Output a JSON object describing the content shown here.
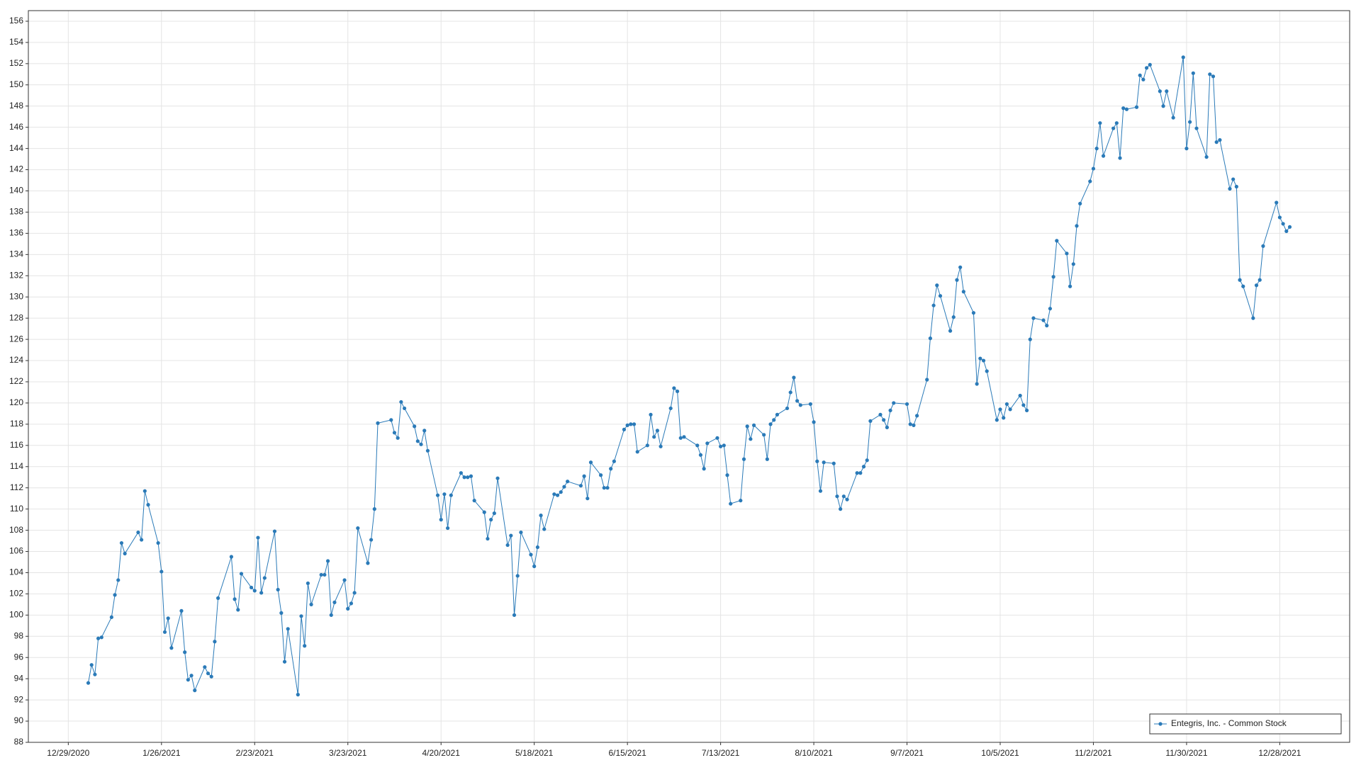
{
  "chart_data": {
    "type": "line",
    "x": [
      "1/4/2021",
      "1/5/2021",
      "1/6/2021",
      "1/7/2021",
      "1/8/2021",
      "1/11/2021",
      "1/12/2021",
      "1/13/2021",
      "1/14/2021",
      "1/15/2021",
      "1/19/2021",
      "1/20/2021",
      "1/21/2021",
      "1/22/2021",
      "1/25/2021",
      "1/26/2021",
      "1/27/2021",
      "1/28/2021",
      "1/29/2021",
      "2/1/2021",
      "2/2/2021",
      "2/3/2021",
      "2/4/2021",
      "2/5/2021",
      "2/8/2021",
      "2/9/2021",
      "2/10/2021",
      "2/11/2021",
      "2/12/2021",
      "2/16/2021",
      "2/17/2021",
      "2/18/2021",
      "2/19/2021",
      "2/22/2021",
      "2/23/2021",
      "2/24/2021",
      "2/25/2021",
      "2/26/2021",
      "3/1/2021",
      "3/2/2021",
      "3/3/2021",
      "3/4/2021",
      "3/5/2021",
      "3/8/2021",
      "3/9/2021",
      "3/10/2021",
      "3/11/2021",
      "3/12/2021",
      "3/15/2021",
      "3/16/2021",
      "3/17/2021",
      "3/18/2021",
      "3/19/2021",
      "3/22/2021",
      "3/23/2021",
      "3/24/2021",
      "3/25/2021",
      "3/26/2021",
      "3/29/2021",
      "3/30/2021",
      "3/31/2021",
      "4/1/2021",
      "4/5/2021",
      "4/6/2021",
      "4/7/2021",
      "4/8/2021",
      "4/9/2021",
      "4/12/2021",
      "4/13/2021",
      "4/14/2021",
      "4/15/2021",
      "4/16/2021",
      "4/19/2021",
      "4/20/2021",
      "4/21/2021",
      "4/22/2021",
      "4/23/2021",
      "4/26/2021",
      "4/27/2021",
      "4/28/2021",
      "4/29/2021",
      "4/30/2021",
      "5/3/2021",
      "5/4/2021",
      "5/5/2021",
      "5/6/2021",
      "5/7/2021",
      "5/10/2021",
      "5/11/2021",
      "5/12/2021",
      "5/13/2021",
      "5/14/2021",
      "5/17/2021",
      "5/18/2021",
      "5/19/2021",
      "5/20/2021",
      "5/21/2021",
      "5/24/2021",
      "5/25/2021",
      "5/26/2021",
      "5/27/2021",
      "5/28/2021",
      "6/1/2021",
      "6/2/2021",
      "6/3/2021",
      "6/4/2021",
      "6/7/2021",
      "6/8/2021",
      "6/9/2021",
      "6/10/2021",
      "6/11/2021",
      "6/14/2021",
      "6/15/2021",
      "6/16/2021",
      "6/17/2021",
      "6/18/2021",
      "6/21/2021",
      "6/22/2021",
      "6/23/2021",
      "6/24/2021",
      "6/25/2021",
      "6/28/2021",
      "6/29/2021",
      "6/30/2021",
      "7/1/2021",
      "7/2/2021",
      "7/6/2021",
      "7/7/2021",
      "7/8/2021",
      "7/9/2021",
      "7/12/2021",
      "7/13/2021",
      "7/14/2021",
      "7/15/2021",
      "7/16/2021",
      "7/19/2021",
      "7/20/2021",
      "7/21/2021",
      "7/22/2021",
      "7/23/2021",
      "7/26/2021",
      "7/27/2021",
      "7/28/2021",
      "7/29/2021",
      "7/30/2021",
      "8/2/2021",
      "8/3/2021",
      "8/4/2021",
      "8/5/2021",
      "8/6/2021",
      "8/9/2021",
      "8/10/2021",
      "8/11/2021",
      "8/12/2021",
      "8/13/2021",
      "8/16/2021",
      "8/17/2021",
      "8/18/2021",
      "8/19/2021",
      "8/20/2021",
      "8/23/2021",
      "8/24/2021",
      "8/25/2021",
      "8/26/2021",
      "8/27/2021",
      "8/30/2021",
      "8/31/2021",
      "9/1/2021",
      "9/2/2021",
      "9/3/2021",
      "9/7/2021",
      "9/8/2021",
      "9/9/2021",
      "9/10/2021",
      "9/13/2021",
      "9/14/2021",
      "9/15/2021",
      "9/16/2021",
      "9/17/2021",
      "9/20/2021",
      "9/21/2021",
      "9/22/2021",
      "9/23/2021",
      "9/24/2021",
      "9/27/2021",
      "9/28/2021",
      "9/29/2021",
      "9/30/2021",
      "10/1/2021",
      "10/4/2021",
      "10/5/2021",
      "10/6/2021",
      "10/7/2021",
      "10/8/2021",
      "10/11/2021",
      "10/12/2021",
      "10/13/2021",
      "10/14/2021",
      "10/15/2021",
      "10/18/2021",
      "10/19/2021",
      "10/20/2021",
      "10/21/2021",
      "10/22/2021",
      "10/25/2021",
      "10/26/2021",
      "10/27/2021",
      "10/28/2021",
      "10/29/2021",
      "11/1/2021",
      "11/2/2021",
      "11/3/2021",
      "11/4/2021",
      "11/5/2021",
      "11/8/2021",
      "11/9/2021",
      "11/10/2021",
      "11/11/2021",
      "11/12/2021",
      "11/15/2021",
      "11/16/2021",
      "11/17/2021",
      "11/18/2021",
      "11/19/2021",
      "11/22/2021",
      "11/23/2021",
      "11/24/2021",
      "11/26/2021",
      "11/29/2021",
      "11/30/2021",
      "12/1/2021",
      "12/2/2021",
      "12/3/2021",
      "12/6/2021",
      "12/7/2021",
      "12/8/2021",
      "12/9/2021",
      "12/10/2021",
      "12/13/2021",
      "12/14/2021",
      "12/15/2021",
      "12/16/2021",
      "12/17/2021",
      "12/20/2021",
      "12/21/2021",
      "12/22/2021",
      "12/23/2021",
      "12/27/2021",
      "12/28/2021",
      "12/29/2021",
      "12/30/2021",
      "12/31/2021"
    ],
    "series": [
      {
        "name": "Entegris, Inc. - Common Stock",
        "color": "#2a7ab8",
        "values": [
          93.6,
          95.3,
          94.4,
          97.8,
          97.9,
          99.8,
          101.9,
          103.3,
          106.8,
          105.8,
          107.8,
          107.1,
          111.7,
          110.4,
          106.8,
          104.1,
          98.4,
          99.7,
          96.9,
          100.4,
          96.5,
          93.9,
          94.3,
          92.9,
          95.1,
          94.5,
          94.2,
          97.5,
          101.6,
          105.5,
          101.5,
          100.5,
          103.9,
          102.6,
          102.3,
          107.3,
          102.1,
          103.5,
          107.9,
          102.4,
          100.2,
          95.6,
          98.7,
          92.5,
          99.9,
          97.1,
          103.0,
          101.0,
          103.8,
          103.8,
          105.1,
          100.0,
          101.2,
          103.3,
          100.6,
          101.1,
          102.1,
          108.2,
          104.9,
          107.1,
          110.0,
          118.1,
          118.4,
          117.2,
          116.7,
          120.1,
          119.5,
          117.8,
          116.4,
          116.1,
          117.4,
          115.5,
          111.3,
          109.0,
          111.4,
          108.2,
          111.3,
          113.4,
          113.0,
          113.0,
          113.1,
          110.8,
          109.7,
          107.2,
          109.0,
          109.6,
          112.9,
          106.6,
          107.5,
          100.0,
          103.7,
          107.8,
          105.7,
          104.6,
          106.4,
          109.4,
          108.1,
          111.4,
          111.3,
          111.6,
          112.1,
          112.6,
          112.2,
          113.1,
          111.0,
          114.4,
          113.2,
          112.0,
          112.0,
          113.8,
          114.5,
          117.5,
          117.9,
          118.0,
          118.0,
          115.4,
          116.0,
          118.9,
          116.8,
          117.4,
          115.9,
          119.5,
          121.4,
          121.1,
          116.7,
          116.8,
          116.0,
          115.1,
          113.8,
          116.2,
          116.7,
          115.9,
          116.0,
          113.2,
          110.5,
          110.8,
          114.7,
          117.8,
          116.6,
          117.9,
          117.0,
          114.7,
          118.0,
          118.4,
          118.9,
          119.5,
          121.0,
          122.4,
          120.2,
          119.8,
          119.9,
          118.2,
          114.5,
          111.7,
          114.4,
          114.3,
          111.2,
          110.0,
          111.2,
          110.9,
          113.4,
          113.4,
          114.0,
          114.6,
          118.3,
          118.9,
          118.4,
          117.7,
          119.3,
          120.0,
          119.9,
          118.0,
          117.9,
          118.8,
          122.2,
          126.1,
          129.2,
          131.1,
          130.1,
          126.8,
          128.1,
          131.6,
          132.8,
          130.5,
          128.5,
          121.8,
          124.2,
          124.0,
          123.0,
          118.4,
          119.4,
          118.6,
          119.9,
          119.4,
          120.7,
          119.8,
          119.3,
          126.0,
          128.0,
          127.8,
          127.3,
          128.9,
          131.9,
          135.3,
          134.1,
          131.0,
          133.1,
          136.7,
          138.8,
          140.9,
          142.1,
          144.0,
          146.4,
          143.3,
          145.9,
          146.4,
          143.1,
          147.8,
          147.7,
          147.9,
          150.9,
          150.5,
          151.6,
          151.9,
          149.4,
          148.0,
          149.4,
          146.9,
          152.6,
          144.0,
          146.5,
          151.1,
          145.9,
          143.2,
          151.0,
          150.8,
          144.6,
          144.8,
          140.2,
          141.1,
          140.4,
          131.6,
          131.0,
          128.0,
          131.1,
          131.6,
          134.8,
          138.9,
          137.5,
          136.9,
          136.2,
          136.6
        ]
      }
    ],
    "xlim": [
      "12/17/2020",
      "1/18/2022"
    ],
    "xticks": [
      "12/29/2020",
      "1/26/2021",
      "2/23/2021",
      "3/23/2021",
      "4/20/2021",
      "5/18/2021",
      "6/15/2021",
      "7/13/2021",
      "8/10/2021",
      "9/7/2021",
      "10/5/2021",
      "11/2/2021",
      "11/30/2021",
      "12/28/2021"
    ],
    "ylim": [
      88,
      157
    ],
    "yticks": [
      88,
      90,
      92,
      94,
      96,
      98,
      100,
      102,
      104,
      106,
      108,
      110,
      112,
      114,
      116,
      118,
      120,
      122,
      124,
      126,
      128,
      130,
      132,
      134,
      136,
      138,
      140,
      142,
      144,
      146,
      148,
      150,
      152,
      154,
      156
    ],
    "grid": true,
    "legend": "lower right"
  }
}
